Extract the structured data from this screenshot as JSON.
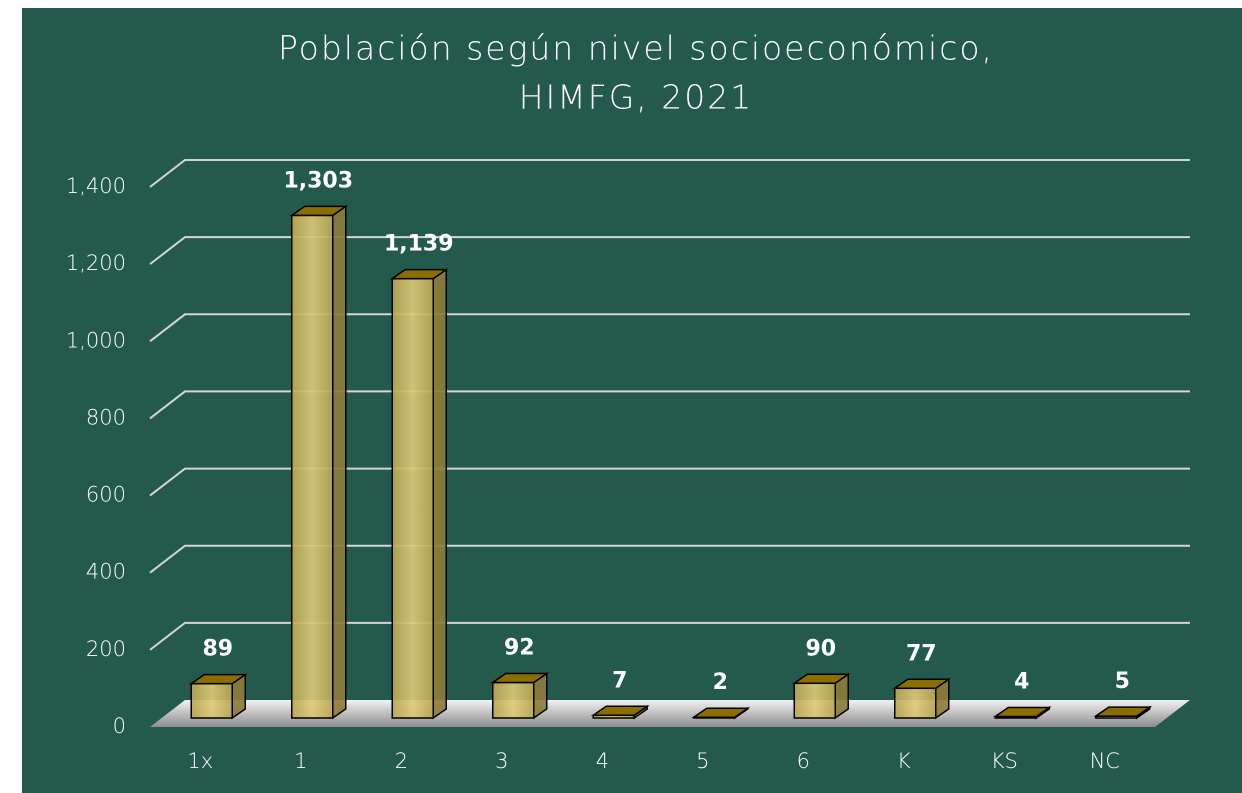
{
  "chart_data": {
    "type": "bar3d",
    "title": [
      "Población según nivel socioeconómico,",
      "HIMFG, 2021"
    ],
    "categories": [
      "1x",
      "1",
      "2",
      "3",
      "4",
      "5",
      "6",
      "K",
      "KS",
      "NC"
    ],
    "values": [
      89,
      1303,
      1139,
      92,
      7,
      2,
      90,
      77,
      4,
      5
    ],
    "value_labels": [
      "89",
      "1,303",
      "1,139",
      "92",
      "7",
      "2",
      "90",
      "77",
      "4",
      "5"
    ],
    "color": "#c9b560",
    "ylim": [
      0,
      1400
    ],
    "yticks": [
      0,
      200,
      400,
      600,
      800,
      {
        "value": 1000,
        "label": "1,000"
      },
      {
        "value": 1200,
        "label": "1,200"
      },
      {
        "value": 1400,
        "label": "1,400"
      }
    ],
    "grid": true
  }
}
